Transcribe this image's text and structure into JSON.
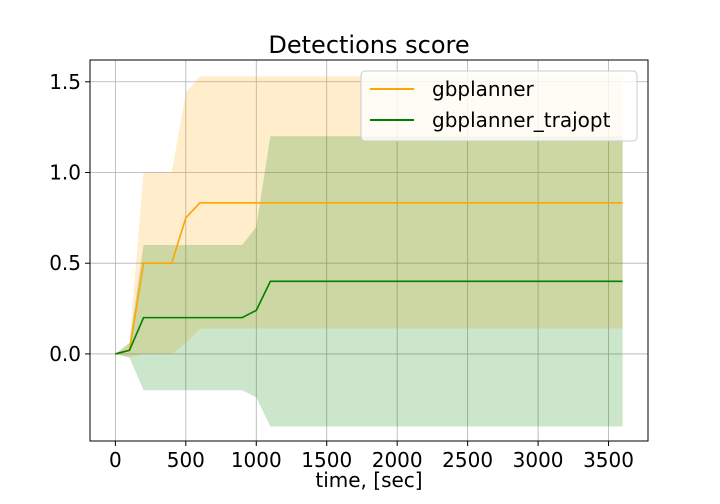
{
  "chart_data": {
    "type": "line",
    "title": "Detections score",
    "xlabel": "time, [sec]",
    "ylabel": "",
    "xlim": [
      -180,
      3780
    ],
    "ylim": [
      -0.48,
      1.62
    ],
    "xticks": [
      0,
      500,
      1000,
      1500,
      2000,
      2500,
      3000,
      3500
    ],
    "xtick_labels": [
      "0",
      "500",
      "1000",
      "1500",
      "2000",
      "2500",
      "3000",
      "3500"
    ],
    "yticks": [
      0.0,
      0.5,
      1.0,
      1.5
    ],
    "ytick_labels": [
      "0.0",
      "0.5",
      "1.0",
      "1.5"
    ],
    "grid": true,
    "legend_position": "upper right",
    "series": [
      {
        "name": "gbplanner",
        "color": "#ffa500",
        "band_color": "#ffa500",
        "x": [
          0,
          100,
          200,
          400,
          500,
          600,
          3600
        ],
        "y": [
          0,
          0.02,
          0.5,
          0.5,
          0.75,
          0.833,
          0.833
        ],
        "upper": [
          0,
          0.06,
          1.0,
          1.0,
          1.44,
          1.53,
          1.53
        ],
        "lower": [
          0,
          -0.02,
          0.0,
          0.0,
          0.06,
          0.14,
          0.14
        ]
      },
      {
        "name": "gbplanner_trajopt",
        "color": "#008000",
        "band_color": "#008000",
        "x": [
          0,
          100,
          200,
          900,
          1000,
          1100,
          3600
        ],
        "y": [
          0,
          0.02,
          0.2,
          0.2,
          0.24,
          0.4,
          0.4
        ],
        "upper": [
          0,
          0.06,
          0.6,
          0.6,
          0.7,
          1.2,
          1.2
        ],
        "lower": [
          0,
          -0.02,
          -0.2,
          -0.2,
          -0.24,
          -0.4,
          -0.4
        ]
      }
    ]
  }
}
